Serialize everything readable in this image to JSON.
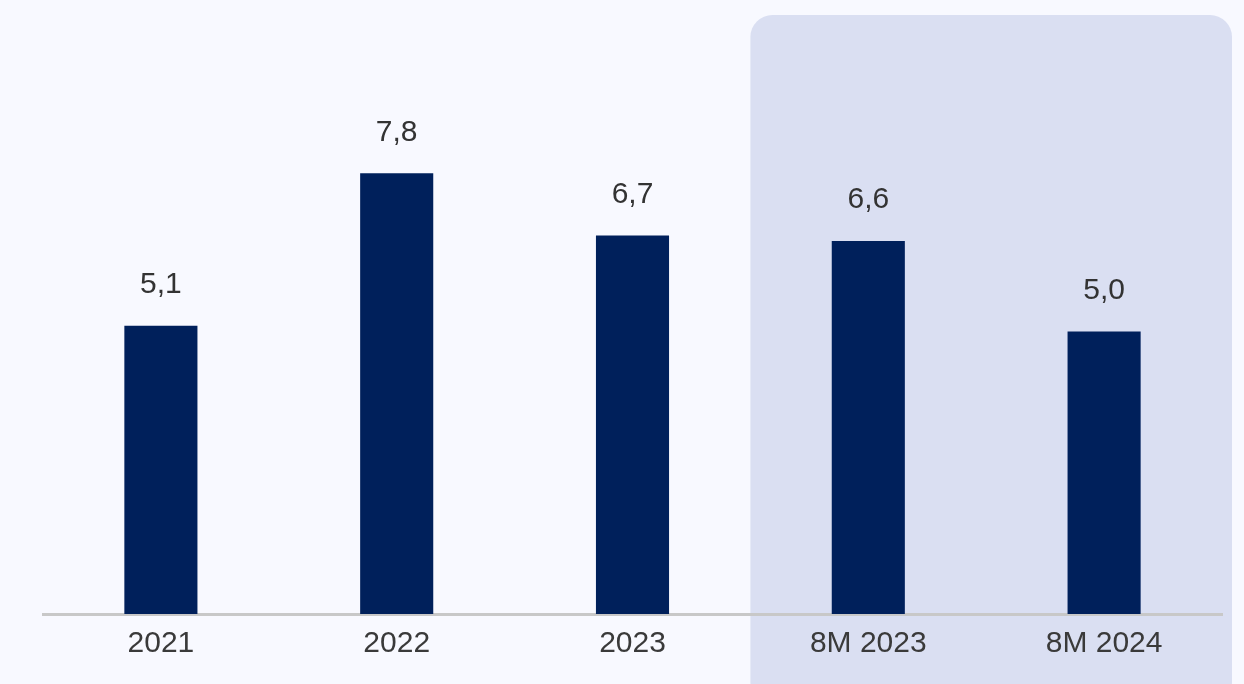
{
  "chart_data": {
    "type": "bar",
    "categories": [
      "2021",
      "2022",
      "2023",
      "8M 2023",
      "8M 2024"
    ],
    "values": [
      5.1,
      7.8,
      6.7,
      6.6,
      5.0
    ],
    "color": "#00205b",
    "value_labels": [
      "5,1",
      "7,8",
      "6,7",
      "6,6",
      "5,0"
    ],
    "bands": [
      {
        "axis": "x",
        "from": "8M 2023",
        "to": "8M 2024",
        "color": "#dadff2"
      }
    ],
    "grid": false,
    "legend": false,
    "tick_labels": "x"
  }
}
